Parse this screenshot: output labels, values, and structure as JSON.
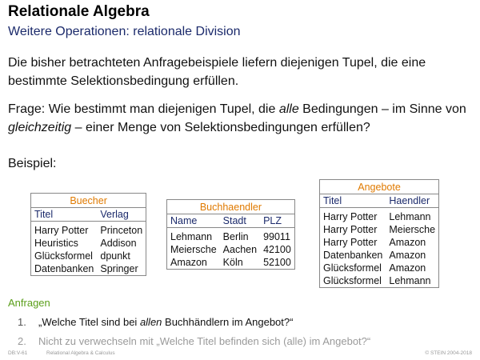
{
  "title": "Relationale Algebra",
  "subtitle": "Weitere Operationen: relationale Division",
  "paragraph1": "Die bisher betrachteten Anfragebeispiele liefern diejenigen Tupel, die eine bestimmte Selektionsbedingung erfüllen.",
  "paragraph2": {
    "part1": "Frage: Wie bestimmt man diejenigen Tupel, die ",
    "em1": "alle",
    "part2": " Bedingungen – im Sinne von ",
    "em2": "gleichzeitig",
    "part3": " – einer Menge von Selektionsbedingungen erfüllen?"
  },
  "example_label": "Beispiel:",
  "tables": {
    "buecher": {
      "caption": "Buecher",
      "headers": [
        "Titel",
        "Verlag"
      ],
      "rows": [
        [
          "Harry Potter",
          "Princeton"
        ],
        [
          "Heuristics",
          "Addison"
        ],
        [
          "Glücksformel",
          "dpunkt"
        ],
        [
          "Datenbanken",
          "Springer"
        ]
      ]
    },
    "buchhaendler": {
      "caption": "Buchhaendler",
      "headers": [
        "Name",
        "Stadt",
        "PLZ"
      ],
      "rows": [
        [
          "Lehmann",
          "Berlin",
          "99011"
        ],
        [
          "Meiersche",
          "Aachen",
          "42100"
        ],
        [
          "Amazon",
          "Köln",
          "52100"
        ]
      ]
    },
    "angebote": {
      "caption": "Angebote",
      "headers": [
        "Titel",
        "Haendler"
      ],
      "rows": [
        [
          "Harry Potter",
          "Lehmann"
        ],
        [
          "Harry Potter",
          "Meiersche"
        ],
        [
          "Harry Potter",
          "Amazon"
        ],
        [
          "Datenbanken",
          "Amazon"
        ],
        [
          "Glücksformel",
          "Amazon"
        ],
        [
          "Glücksformel",
          "Lehmann"
        ]
      ]
    }
  },
  "anfragen": {
    "heading": "Anfragen",
    "items": [
      {
        "num": "1.",
        "part1": "„Welche Titel sind bei ",
        "em": "allen",
        "part2": " Buchhändlern im Angebot?“"
      },
      {
        "num": "2.",
        "text": "Nicht zu verwechseln mit „Welche Titel befinden sich (alle) im Angebot?“"
      }
    ]
  },
  "footer": {
    "left": "DB:V-61",
    "middle": "Relational Algebra & Calculus",
    "right": "© STEIN 2004-2018"
  }
}
